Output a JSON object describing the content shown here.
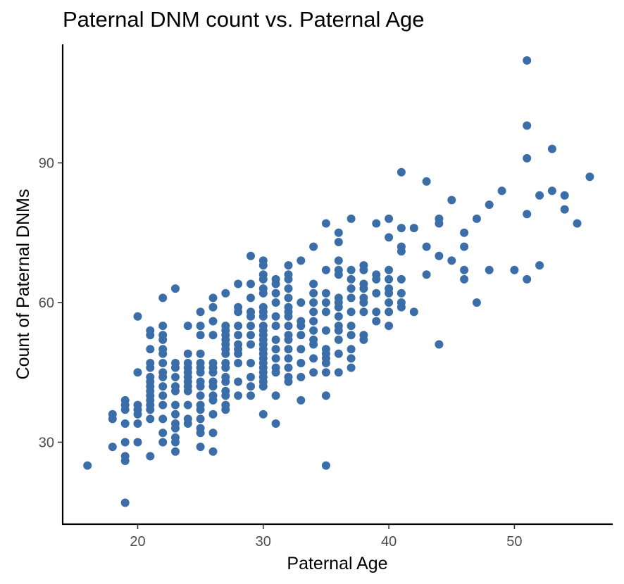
{
  "chart_data": {
    "type": "scatter",
    "title": "Paternal DNM count vs. Paternal Age",
    "xlabel": "Paternal Age",
    "ylabel": "Count of Paternal DNMs",
    "xlim": [
      14.5,
      57.5
    ],
    "ylim": [
      13.5,
      116
    ],
    "x_ticks": [
      20,
      30,
      40,
      50
    ],
    "y_ticks": [
      30,
      60,
      90
    ],
    "grid": false,
    "point_color": "#3B6EA8",
    "points": [
      [
        16,
        25
      ],
      [
        18,
        29
      ],
      [
        18,
        35
      ],
      [
        18,
        36
      ],
      [
        19,
        17
      ],
      [
        19,
        26
      ],
      [
        19,
        27
      ],
      [
        19,
        30
      ],
      [
        19,
        34
      ],
      [
        19,
        37
      ],
      [
        19,
        38
      ],
      [
        19,
        39
      ],
      [
        20,
        30
      ],
      [
        20,
        34
      ],
      [
        20,
        36
      ],
      [
        20,
        37
      ],
      [
        20,
        38
      ],
      [
        20,
        45
      ],
      [
        20,
        57
      ],
      [
        21,
        27
      ],
      [
        21,
        35
      ],
      [
        21,
        37
      ],
      [
        21,
        38
      ],
      [
        21,
        39
      ],
      [
        21,
        40
      ],
      [
        21,
        41
      ],
      [
        21,
        42
      ],
      [
        21,
        43
      ],
      [
        21,
        44
      ],
      [
        21,
        46
      ],
      [
        21,
        47
      ],
      [
        21,
        50
      ],
      [
        21,
        53
      ],
      [
        21,
        54
      ],
      [
        22,
        30
      ],
      [
        22,
        32
      ],
      [
        22,
        35
      ],
      [
        22,
        38
      ],
      [
        22,
        40
      ],
      [
        22,
        42
      ],
      [
        22,
        44
      ],
      [
        22,
        45
      ],
      [
        22,
        47
      ],
      [
        22,
        49
      ],
      [
        22,
        50
      ],
      [
        22,
        52
      ],
      [
        22,
        53
      ],
      [
        22,
        55
      ],
      [
        22,
        61
      ],
      [
        23,
        28
      ],
      [
        23,
        30
      ],
      [
        23,
        31
      ],
      [
        23,
        33
      ],
      [
        23,
        34
      ],
      [
        23,
        36
      ],
      [
        23,
        38
      ],
      [
        23,
        41
      ],
      [
        23,
        42
      ],
      [
        23,
        44
      ],
      [
        23,
        46
      ],
      [
        23,
        47
      ],
      [
        23,
        63
      ],
      [
        24,
        34
      ],
      [
        24,
        35
      ],
      [
        24,
        38
      ],
      [
        24,
        41
      ],
      [
        24,
        42
      ],
      [
        24,
        43
      ],
      [
        24,
        44
      ],
      [
        24,
        45
      ],
      [
        24,
        46
      ],
      [
        24,
        47
      ],
      [
        24,
        49
      ],
      [
        24,
        55
      ],
      [
        25,
        29
      ],
      [
        25,
        32
      ],
      [
        25,
        33
      ],
      [
        25,
        35
      ],
      [
        25,
        37
      ],
      [
        25,
        38
      ],
      [
        25,
        40
      ],
      [
        25,
        42
      ],
      [
        25,
        43
      ],
      [
        25,
        45
      ],
      [
        25,
        46
      ],
      [
        25,
        47
      ],
      [
        25,
        49
      ],
      [
        25,
        53
      ],
      [
        25,
        55
      ],
      [
        25,
        58
      ],
      [
        26,
        28
      ],
      [
        26,
        32
      ],
      [
        26,
        36
      ],
      [
        26,
        39
      ],
      [
        26,
        40
      ],
      [
        26,
        42
      ],
      [
        26,
        43
      ],
      [
        26,
        45
      ],
      [
        26,
        46
      ],
      [
        26,
        47
      ],
      [
        26,
        53
      ],
      [
        26,
        56
      ],
      [
        26,
        59
      ],
      [
        26,
        61
      ],
      [
        27,
        37
      ],
      [
        27,
        38
      ],
      [
        27,
        40
      ],
      [
        27,
        41
      ],
      [
        27,
        43
      ],
      [
        27,
        44
      ],
      [
        27,
        46
      ],
      [
        27,
        47
      ],
      [
        27,
        49
      ],
      [
        27,
        50
      ],
      [
        27,
        51
      ],
      [
        27,
        52
      ],
      [
        27,
        53
      ],
      [
        27,
        54
      ],
      [
        27,
        55
      ],
      [
        27,
        62
      ],
      [
        28,
        40
      ],
      [
        28,
        43
      ],
      [
        28,
        47
      ],
      [
        28,
        49
      ],
      [
        28,
        50
      ],
      [
        28,
        51
      ],
      [
        28,
        53
      ],
      [
        28,
        55
      ],
      [
        28,
        58
      ],
      [
        28,
        59
      ],
      [
        28,
        64
      ],
      [
        29,
        40
      ],
      [
        29,
        42
      ],
      [
        29,
        44
      ],
      [
        29,
        47
      ],
      [
        29,
        51
      ],
      [
        29,
        53
      ],
      [
        29,
        55
      ],
      [
        29,
        57
      ],
      [
        29,
        58
      ],
      [
        29,
        61
      ],
      [
        29,
        64
      ],
      [
        29,
        70
      ],
      [
        30,
        36
      ],
      [
        30,
        42
      ],
      [
        30,
        43
      ],
      [
        30,
        44
      ],
      [
        30,
        45
      ],
      [
        30,
        46
      ],
      [
        30,
        47
      ],
      [
        30,
        48
      ],
      [
        30,
        49
      ],
      [
        30,
        50
      ],
      [
        30,
        51
      ],
      [
        30,
        52
      ],
      [
        30,
        53
      ],
      [
        30,
        54
      ],
      [
        30,
        55
      ],
      [
        30,
        57
      ],
      [
        30,
        58
      ],
      [
        30,
        59
      ],
      [
        30,
        62
      ],
      [
        30,
        63
      ],
      [
        30,
        65
      ],
      [
        30,
        66
      ],
      [
        30,
        68
      ],
      [
        30,
        69
      ],
      [
        31,
        34
      ],
      [
        31,
        40
      ],
      [
        31,
        45
      ],
      [
        31,
        46
      ],
      [
        31,
        48
      ],
      [
        31,
        50
      ],
      [
        31,
        52
      ],
      [
        31,
        55
      ],
      [
        31,
        57
      ],
      [
        31,
        60
      ],
      [
        31,
        62
      ],
      [
        31,
        64
      ],
      [
        31,
        65
      ],
      [
        32,
        43
      ],
      [
        32,
        44
      ],
      [
        32,
        46
      ],
      [
        32,
        48
      ],
      [
        32,
        50
      ],
      [
        32,
        52
      ],
      [
        32,
        53
      ],
      [
        32,
        55
      ],
      [
        32,
        57
      ],
      [
        32,
        58
      ],
      [
        32,
        59
      ],
      [
        32,
        61
      ],
      [
        32,
        63
      ],
      [
        32,
        65
      ],
      [
        32,
        66
      ],
      [
        32,
        68
      ],
      [
        33,
        39
      ],
      [
        33,
        44
      ],
      [
        33,
        47
      ],
      [
        33,
        50
      ],
      [
        33,
        53
      ],
      [
        33,
        55
      ],
      [
        33,
        56
      ],
      [
        33,
        60
      ],
      [
        33,
        69
      ],
      [
        34,
        45
      ],
      [
        34,
        48
      ],
      [
        34,
        51
      ],
      [
        34,
        52
      ],
      [
        34,
        54
      ],
      [
        34,
        56
      ],
      [
        34,
        58
      ],
      [
        34,
        60
      ],
      [
        34,
        62
      ],
      [
        34,
        64
      ],
      [
        34,
        72
      ],
      [
        35,
        25
      ],
      [
        35,
        40
      ],
      [
        35,
        45
      ],
      [
        35,
        47
      ],
      [
        35,
        48
      ],
      [
        35,
        49
      ],
      [
        35,
        50
      ],
      [
        35,
        54
      ],
      [
        35,
        58
      ],
      [
        35,
        60
      ],
      [
        35,
        62
      ],
      [
        35,
        67
      ],
      [
        35,
        77
      ],
      [
        36,
        45
      ],
      [
        36,
        49
      ],
      [
        36,
        52
      ],
      [
        36,
        54
      ],
      [
        36,
        55
      ],
      [
        36,
        57
      ],
      [
        36,
        59
      ],
      [
        36,
        60
      ],
      [
        36,
        61
      ],
      [
        36,
        66
      ],
      [
        36,
        67
      ],
      [
        36,
        69
      ],
      [
        36,
        73
      ],
      [
        36,
        75
      ],
      [
        37,
        46
      ],
      [
        37,
        48
      ],
      [
        37,
        50
      ],
      [
        37,
        53
      ],
      [
        37,
        55
      ],
      [
        37,
        58
      ],
      [
        37,
        61
      ],
      [
        37,
        63
      ],
      [
        37,
        65
      ],
      [
        37,
        67
      ],
      [
        37,
        78
      ],
      [
        38,
        52
      ],
      [
        38,
        53
      ],
      [
        38,
        58
      ],
      [
        38,
        60
      ],
      [
        38,
        61
      ],
      [
        38,
        63
      ],
      [
        38,
        64
      ],
      [
        38,
        67
      ],
      [
        38,
        68
      ],
      [
        39,
        56
      ],
      [
        39,
        58
      ],
      [
        39,
        62
      ],
      [
        39,
        65
      ],
      [
        39,
        66
      ],
      [
        39,
        77
      ],
      [
        40,
        55
      ],
      [
        40,
        58
      ],
      [
        40,
        60
      ],
      [
        40,
        62
      ],
      [
        40,
        63
      ],
      [
        40,
        65
      ],
      [
        40,
        67
      ],
      [
        40,
        74
      ],
      [
        40,
        78
      ],
      [
        41,
        59
      ],
      [
        41,
        60
      ],
      [
        41,
        62
      ],
      [
        41,
        65
      ],
      [
        41,
        71
      ],
      [
        41,
        72
      ],
      [
        41,
        76
      ],
      [
        41,
        88
      ],
      [
        42,
        58
      ],
      [
        42,
        76
      ],
      [
        43,
        66
      ],
      [
        43,
        72
      ],
      [
        43,
        86
      ],
      [
        44,
        51
      ],
      [
        44,
        70
      ],
      [
        44,
        77
      ],
      [
        44,
        78
      ],
      [
        45,
        69
      ],
      [
        45,
        82
      ],
      [
        46,
        65
      ],
      [
        46,
        67
      ],
      [
        46,
        72
      ],
      [
        46,
        75
      ],
      [
        47,
        60
      ],
      [
        47,
        78
      ],
      [
        48,
        67
      ],
      [
        48,
        81
      ],
      [
        49,
        84
      ],
      [
        50,
        67
      ],
      [
        51,
        65
      ],
      [
        51,
        79
      ],
      [
        51,
        91
      ],
      [
        51,
        98
      ],
      [
        51,
        112
      ],
      [
        52,
        68
      ],
      [
        52,
        83
      ],
      [
        53,
        84
      ],
      [
        53,
        93
      ],
      [
        54,
        80
      ],
      [
        54,
        83
      ],
      [
        55,
        77
      ],
      [
        56,
        87
      ]
    ]
  }
}
